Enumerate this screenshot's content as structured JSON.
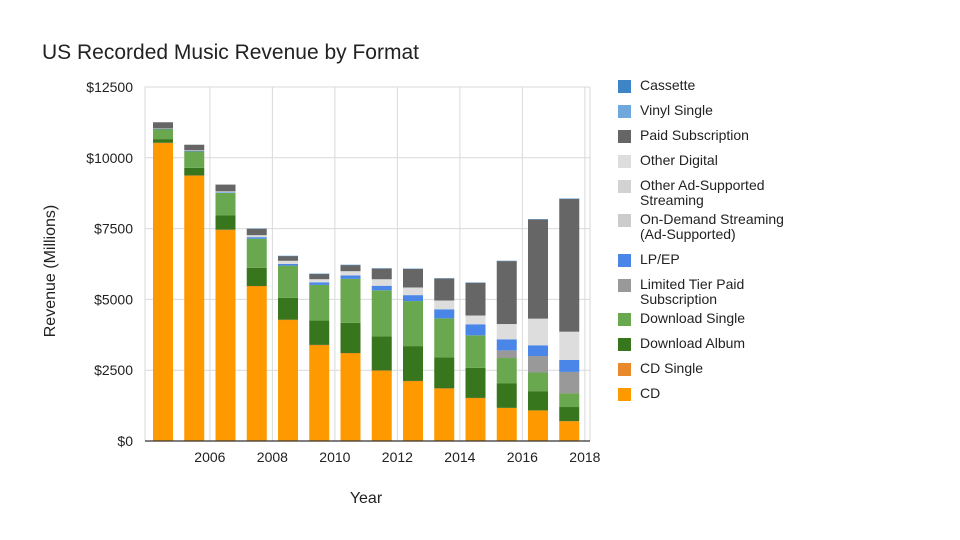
{
  "chart_data": {
    "type": "bar",
    "stacked": true,
    "title": "US Recorded Music Revenue by Format",
    "xlabel": "Year",
    "ylabel": "Revenue (Millions)",
    "ylim": [
      0,
      12500
    ],
    "y_ticks": [
      0,
      2500,
      5000,
      7500,
      10000,
      12500
    ],
    "y_tick_labels": [
      "$0",
      "$2500",
      "$5000",
      "$7500",
      "$10000",
      "$12500"
    ],
    "x_tick_labels": [
      "2006",
      "2008",
      "2010",
      "2012",
      "2014",
      "2016",
      "2018"
    ],
    "x_tick_years": [
      2006,
      2008,
      2010,
      2012,
      2014,
      2016,
      2018
    ],
    "categories": [
      2005,
      2006,
      2007,
      2008,
      2009,
      2010,
      2011,
      2012,
      2013,
      2014,
      2015,
      2016,
      2017,
      2018
    ],
    "grid": true,
    "legend_position": "right",
    "series": [
      {
        "name": "CD",
        "color": "#ff9900",
        "values": [
          10520,
          9370,
          7450,
          5470,
          4280,
          3390,
          3100,
          2490,
          2120,
          1860,
          1520,
          1170,
          1080,
          700
        ]
      },
      {
        "name": "CD Single",
        "color": "#e8892b",
        "values": [
          10,
          7,
          12,
          3,
          3,
          3,
          6,
          2,
          1,
          1,
          1,
          0,
          0,
          0
        ]
      },
      {
        "name": "Download Album",
        "color": "#38761d",
        "values": [
          130,
          270,
          500,
          640,
          770,
          860,
          1070,
          1200,
          1230,
          1090,
          1060,
          860,
          680,
          500
        ]
      },
      {
        "name": "Download Single",
        "color": "#6aa84f",
        "values": [
          360,
          580,
          800,
          1030,
          1140,
          1260,
          1550,
          1630,
          1590,
          1380,
          1150,
          900,
          660,
          480
        ]
      },
      {
        "name": "Limited Tier Paid Subscription",
        "color": "#999999",
        "values": [
          0,
          0,
          0,
          0,
          0,
          0,
          0,
          0,
          0,
          0,
          0,
          270,
          580,
          760
        ]
      },
      {
        "name": "LP/EP",
        "color": "#4a86e8",
        "values": [
          5,
          15,
          22,
          55,
          60,
          90,
          120,
          160,
          210,
          320,
          390,
          390,
          380,
          420
        ]
      },
      {
        "name": "On-Demand Streaming (Ad-Supported)",
        "color": "#cccccc",
        "values": [
          0,
          0,
          0,
          0,
          0,
          0,
          0,
          0,
          0,
          0,
          0,
          0,
          0,
          0
        ]
      },
      {
        "name": "Other Ad-Supported Streaming",
        "color": "#d2d2d2",
        "values": [
          0,
          0,
          0,
          0,
          0,
          0,
          0,
          0,
          0,
          0,
          0,
          0,
          0,
          0
        ]
      },
      {
        "name": "Other Digital",
        "color": "#dddddd",
        "values": [
          10,
          20,
          30,
          70,
          110,
          110,
          150,
          230,
          270,
          310,
          310,
          540,
          940,
          1000
        ]
      },
      {
        "name": "Paid Subscription",
        "color": "#666666",
        "values": [
          220,
          200,
          240,
          230,
          170,
          190,
          220,
          380,
          660,
          780,
          1160,
          2230,
          3510,
          4700
        ]
      },
      {
        "name": "Vinyl Single",
        "color": "#6fa8dc",
        "values": [
          0,
          0,
          0,
          10,
          10,
          10,
          10,
          10,
          10,
          10,
          10,
          5,
          5,
          5
        ]
      },
      {
        "name": "Cassette",
        "color": "#3d85c6",
        "values": [
          0,
          0,
          0,
          0,
          0,
          0,
          0,
          0,
          0,
          0,
          0,
          0,
          0,
          0
        ]
      }
    ],
    "legend": [
      {
        "label": "Cassette",
        "color": "#3d85c6"
      },
      {
        "label": "Vinyl Single",
        "color": "#6fa8dc"
      },
      {
        "label": "Paid Subscription",
        "color": "#666666"
      },
      {
        "label": "Other Digital",
        "color": "#dddddd"
      },
      {
        "label": "Other Ad-Supported Streaming",
        "color": "#d2d2d2"
      },
      {
        "label": "On-Demand Streaming (Ad-Supported)",
        "color": "#cccccc"
      },
      {
        "label": "LP/EP",
        "color": "#4a86e8"
      },
      {
        "label": "Limited Tier Paid Subscription",
        "color": "#999999"
      },
      {
        "label": "Download Single",
        "color": "#6aa84f"
      },
      {
        "label": "Download Album",
        "color": "#38761d"
      },
      {
        "label": "CD Single",
        "color": "#e8892b"
      },
      {
        "label": "CD",
        "color": "#ff9900"
      }
    ]
  }
}
